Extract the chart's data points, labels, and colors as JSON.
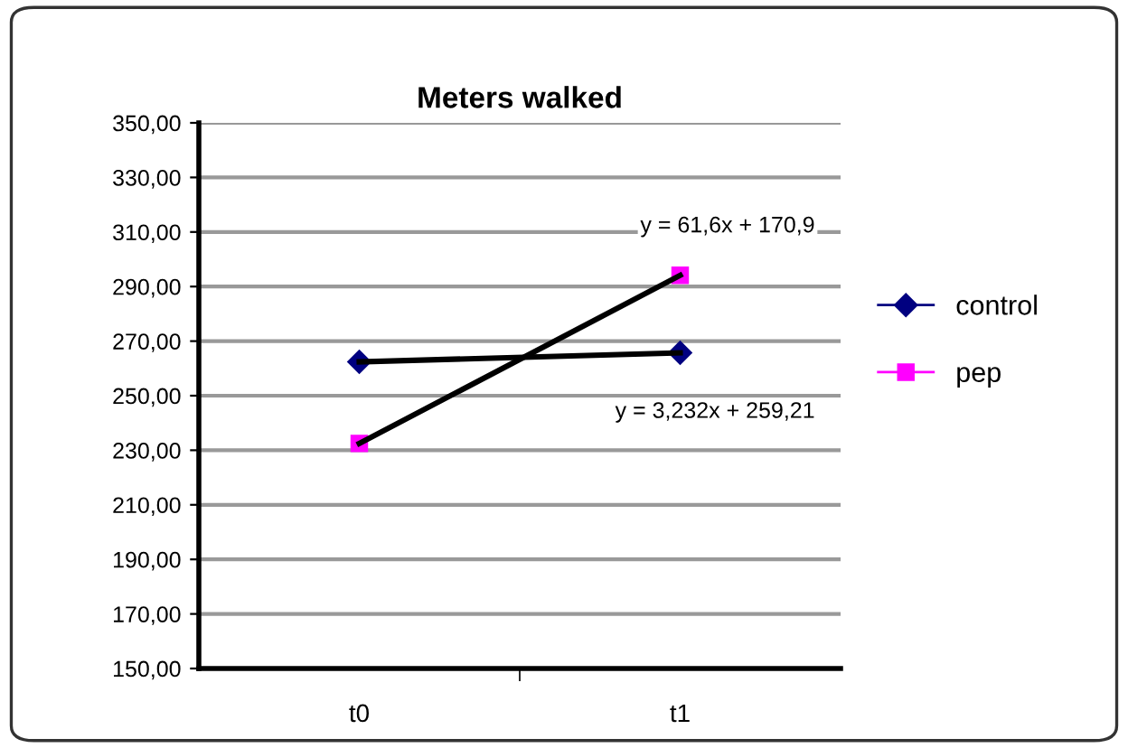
{
  "chart_data": {
    "type": "line",
    "title": "Meters walked",
    "categories": [
      "t0",
      "t1"
    ],
    "series": [
      {
        "name": "control",
        "type": "scatter",
        "color": "#000080",
        "values": [
          262.4,
          265.7
        ],
        "marker": "diamond"
      },
      {
        "name": "pep",
        "type": "scatter",
        "color": "#ff00ff",
        "values": [
          232.5,
          294.1
        ],
        "marker": "square"
      },
      {
        "color": "#000000",
        "values": [
          262.4,
          265.7
        ],
        "marker": "none",
        "line_style": "solid"
      },
      {
        "color": "#000000",
        "values": [
          232.5,
          294.1
        ],
        "marker": "none",
        "line_style": "solid"
      }
    ],
    "ylim": [
      150,
      350
    ],
    "yticks": [
      {
        "value": 150,
        "label": "150,00"
      },
      {
        "value": 170,
        "label": "170,00"
      },
      {
        "value": 190,
        "label": "190,00"
      },
      {
        "value": 210,
        "label": "210,00"
      },
      {
        "value": 230,
        "label": "230,00"
      },
      {
        "value": 250,
        "label": "250,00"
      },
      {
        "value": 270,
        "label": "270,00"
      },
      {
        "value": 290,
        "label": "290,00"
      },
      {
        "value": 310,
        "label": "310,00"
      },
      {
        "value": 330,
        "label": "330,00"
      },
      {
        "value": 350,
        "label": "350,00"
      }
    ],
    "grid": "y",
    "legend": "right",
    "annotations": [
      "y = 61,6x + 170,9",
      "y = 3,232x + 259,21"
    ]
  }
}
